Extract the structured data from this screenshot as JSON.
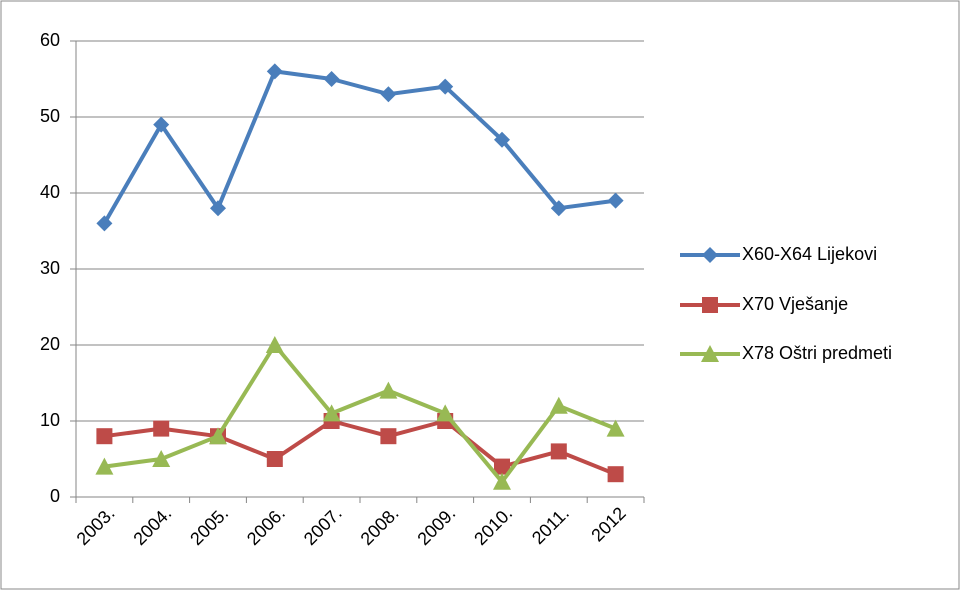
{
  "chart_data": {
    "type": "line",
    "categories": [
      "2003.",
      "2004.",
      "2005.",
      "2006.",
      "2007.",
      "2008.",
      "2009.",
      "2010.",
      "2011.",
      "2012"
    ],
    "series": [
      {
        "name": "X60-X64 Lijekovi",
        "color": "#4a7ebb",
        "marker": "diamond",
        "values": [
          36,
          49,
          38,
          56,
          55,
          53,
          54,
          47,
          38,
          39
        ]
      },
      {
        "name": "X70 Vješanje",
        "color": "#be4b48",
        "marker": "square",
        "values": [
          8,
          9,
          8,
          5,
          10,
          8,
          10,
          4,
          6,
          3
        ]
      },
      {
        "name": "X78 Oštri predmeti",
        "color": "#98b954",
        "marker": "triangle",
        "values": [
          4,
          5,
          8,
          20,
          11,
          14,
          11,
          2,
          12,
          9
        ]
      }
    ],
    "ylim": [
      0,
      60
    ],
    "yticks": [
      0,
      10,
      20,
      30,
      40,
      50,
      60
    ],
    "grid": true,
    "legend": "right"
  }
}
